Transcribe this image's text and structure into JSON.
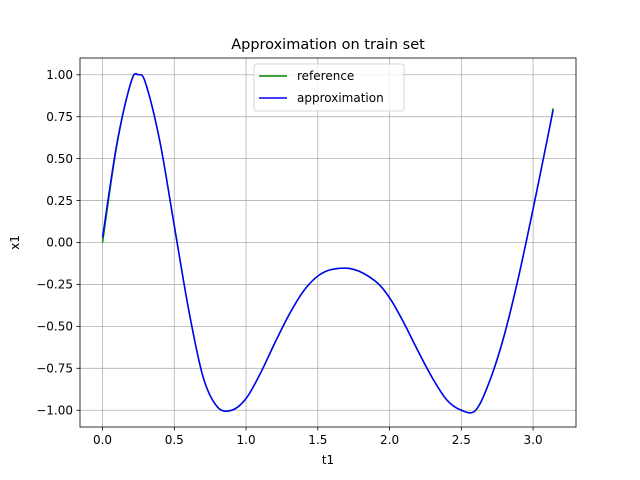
{
  "chart_data": {
    "type": "line",
    "title": "Approximation on train set",
    "xlabel": "t1",
    "ylabel": "x1",
    "xlim": [
      -0.157,
      3.299
    ],
    "ylim": [
      -1.1,
      1.1
    ],
    "xticks": [
      0.0,
      0.5,
      1.0,
      1.5,
      2.0,
      2.5,
      3.0
    ],
    "xtick_labels": [
      "0.0",
      "0.5",
      "1.0",
      "1.5",
      "2.0",
      "2.5",
      "3.0"
    ],
    "yticks": [
      -1.0,
      -0.75,
      -0.5,
      -0.25,
      0.0,
      0.25,
      0.5,
      0.75,
      1.0
    ],
    "ytick_labels": [
      "−1.00",
      "−0.75",
      "−0.50",
      "−0.25",
      "0.00",
      "0.25",
      "0.50",
      "0.75",
      "1.00"
    ],
    "grid": true,
    "legend_position": "upper center",
    "x": [
      0.0,
      0.1,
      0.2,
      0.25,
      0.3,
      0.4,
      0.5,
      0.6,
      0.7,
      0.8,
      0.9,
      1.0,
      1.1,
      1.2,
      1.3,
      1.4,
      1.5,
      1.6,
      1.75,
      1.9,
      2.0,
      2.1,
      2.2,
      2.3,
      2.4,
      2.5,
      2.6,
      2.7,
      2.8,
      2.9,
      3.0,
      3.1,
      3.14
    ],
    "series": [
      {
        "name": "reference",
        "color": "#008000",
        "values": [
          0.0,
          0.58,
          0.96,
          1.0,
          0.95,
          0.6,
          0.1,
          -0.4,
          -0.8,
          -0.98,
          -1.0,
          -0.93,
          -0.78,
          -0.6,
          -0.43,
          -0.29,
          -0.2,
          -0.16,
          -0.16,
          -0.23,
          -0.33,
          -0.48,
          -0.65,
          -0.81,
          -0.94,
          -1.0,
          -1.0,
          -0.82,
          -0.55,
          -0.2,
          0.2,
          0.62,
          0.8
        ]
      },
      {
        "name": "approximation",
        "color": "#0000ff",
        "values": [
          0.03,
          0.59,
          0.96,
          1.0,
          0.95,
          0.6,
          0.1,
          -0.4,
          -0.8,
          -0.98,
          -1.0,
          -0.93,
          -0.78,
          -0.6,
          -0.43,
          -0.29,
          -0.2,
          -0.16,
          -0.16,
          -0.23,
          -0.33,
          -0.48,
          -0.65,
          -0.81,
          -0.94,
          -1.0,
          -1.0,
          -0.82,
          -0.55,
          -0.2,
          0.2,
          0.62,
          0.79
        ]
      }
    ]
  }
}
